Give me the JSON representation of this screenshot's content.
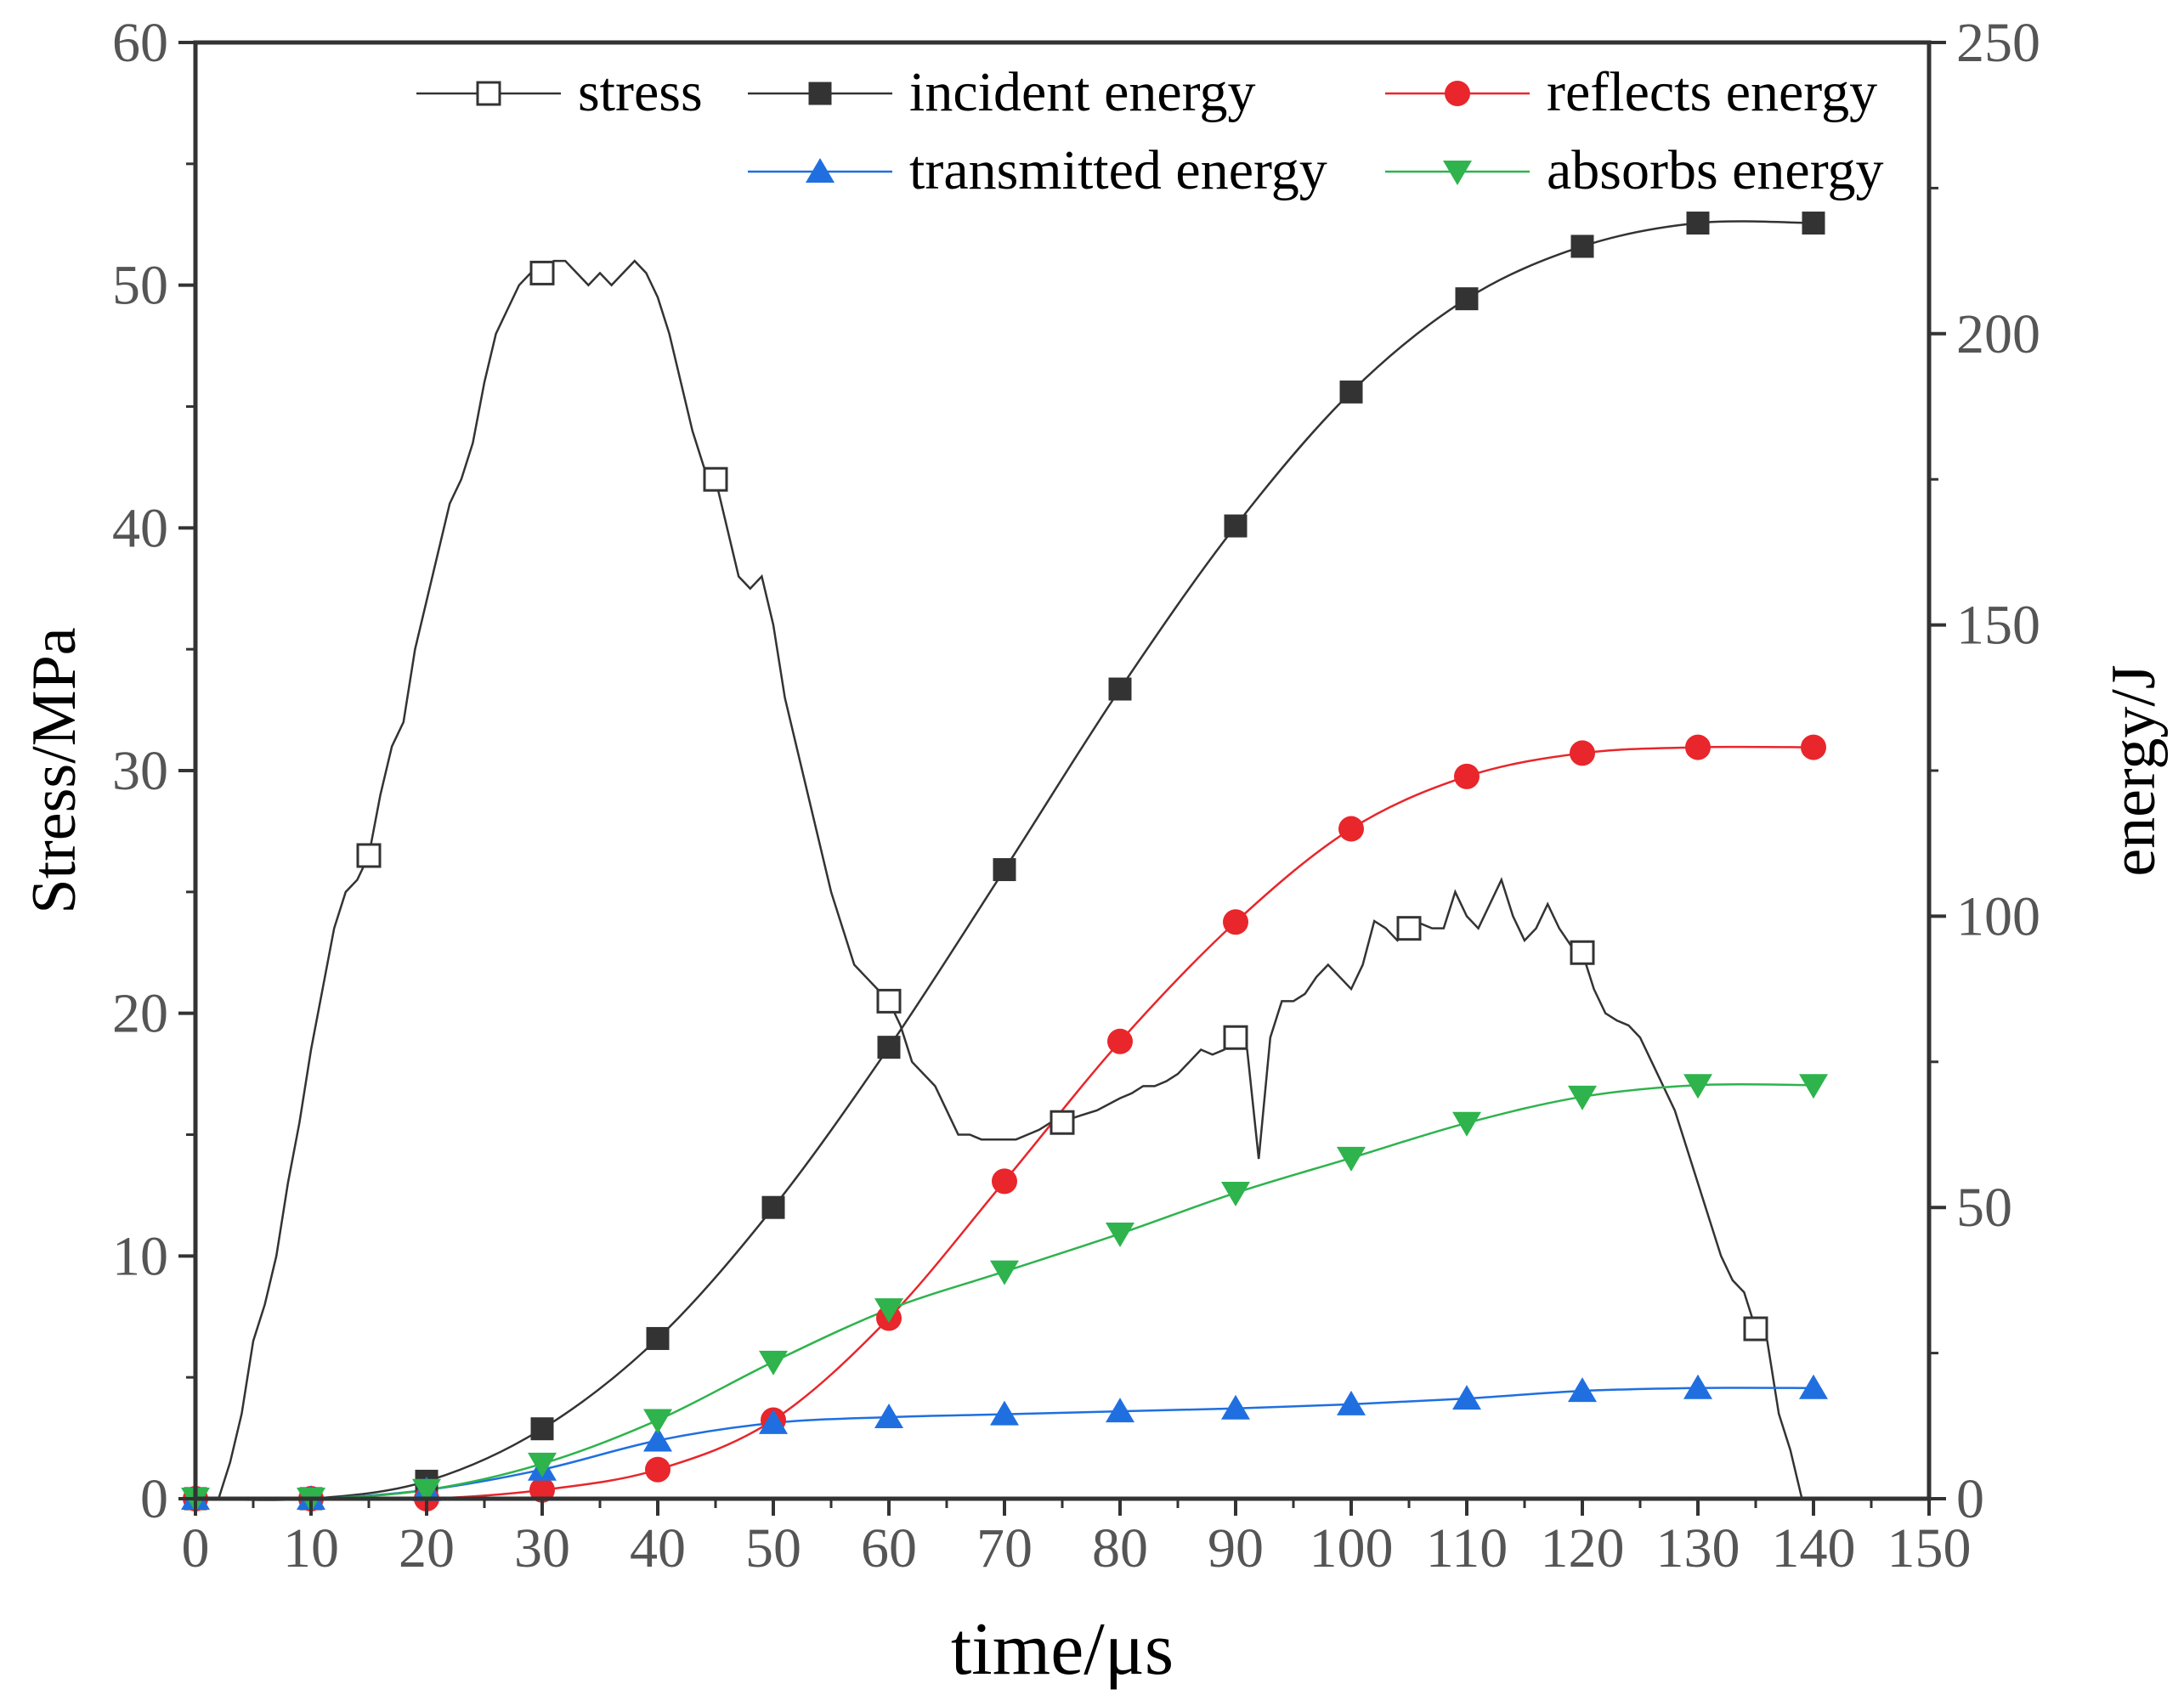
{
  "chart_data": {
    "type": "line",
    "xlabel": "time/μs",
    "ylabel": "Stress/MPa",
    "y2label": "energy/J",
    "xlim": [
      0,
      150
    ],
    "ylim": [
      0,
      60
    ],
    "y2lim": [
      0,
      250
    ],
    "xticks": [
      0,
      10,
      20,
      30,
      40,
      50,
      60,
      70,
      80,
      90,
      100,
      110,
      120,
      130,
      140,
      150
    ],
    "yticks": [
      0,
      10,
      20,
      30,
      40,
      50,
      60
    ],
    "y2ticks": [
      0,
      50,
      100,
      150,
      200,
      250
    ],
    "grid": false,
    "legend_position": "top",
    "series": [
      {
        "name": "stress",
        "axis": "left",
        "color": "#333333",
        "marker": "open-square",
        "x": [
          0,
          1,
          2,
          3,
          4,
          5,
          6,
          7,
          8,
          9,
          10,
          11,
          12,
          13,
          14,
          15,
          16,
          17,
          18,
          19,
          20,
          21,
          22,
          23,
          24,
          25,
          26,
          27,
          28,
          29,
          30,
          31,
          32,
          33,
          34,
          35,
          36,
          37,
          38,
          39,
          40,
          41,
          42,
          43,
          44,
          45,
          46,
          47,
          48,
          49,
          50,
          51,
          52,
          53,
          54,
          55,
          56,
          57,
          58,
          59,
          60,
          61,
          62,
          63,
          64,
          65,
          66,
          67,
          68,
          69,
          70,
          71,
          72,
          73,
          74,
          75,
          76,
          78,
          80,
          81,
          82,
          83,
          84,
          85,
          86,
          87,
          88,
          89,
          90,
          91,
          92,
          93,
          94,
          95,
          96,
          97,
          98,
          99,
          100,
          101,
          102,
          103,
          104,
          105,
          106,
          107,
          108,
          109,
          110,
          111,
          112,
          113,
          114,
          115,
          116,
          117,
          118,
          119,
          120,
          121,
          122,
          123,
          124,
          125,
          126,
          127,
          128,
          129,
          130,
          131,
          132,
          133,
          134,
          135,
          136,
          137,
          138,
          139
        ],
        "y": [
          0,
          0,
          0,
          1.5,
          3.5,
          6.5,
          8,
          10,
          13,
          15.5,
          18.5,
          21,
          23.5,
          25,
          25.5,
          26.5,
          29,
          31,
          32,
          35,
          37,
          39,
          41,
          42,
          43.5,
          46,
          48,
          49,
          50,
          50.5,
          50.5,
          51,
          51,
          50.5,
          50,
          50.5,
          50,
          50.5,
          51,
          50.5,
          49.5,
          48,
          46,
          44,
          42.5,
          42,
          40,
          38,
          37.5,
          38,
          36,
          33,
          31,
          29,
          27,
          25,
          23.5,
          22,
          21.5,
          21,
          20.5,
          19.5,
          18,
          17.5,
          17,
          16,
          15,
          15,
          14.8,
          14.8,
          14.8,
          14.8,
          15,
          15.2,
          15.5,
          15.5,
          15.7,
          16,
          16.5,
          16.7,
          17,
          17,
          17.2,
          17.5,
          18,
          18.5,
          18.3,
          18.5,
          19,
          18.5,
          14,
          19,
          20.5,
          20.5,
          20.8,
          21.5,
          22,
          21.5,
          21,
          22,
          23.8,
          23.5,
          23,
          23.5,
          23.7,
          23.5,
          23.5,
          25,
          24,
          23.5,
          24.5,
          25.5,
          24,
          23,
          23.5,
          24.5,
          23.5,
          22.8,
          22.5,
          21,
          20,
          19.7,
          19.5,
          19,
          18,
          17,
          16,
          14.5,
          13,
          11.5,
          10,
          9,
          8.5,
          7,
          6.5,
          3.5,
          2,
          0
        ]
      },
      {
        "name": "incident energy",
        "axis": "right",
        "color": "#333333",
        "marker": "filled-square",
        "x": [
          0,
          10,
          20,
          30,
          40,
          50,
          60,
          70,
          80,
          90,
          100,
          110,
          120,
          130,
          140
        ],
        "y": [
          0,
          0,
          3,
          12,
          27.5,
          50,
          77.5,
          108,
          139,
          167,
          190,
          206,
          215,
          219,
          219
        ]
      },
      {
        "name": "reflects energy",
        "axis": "right",
        "color": "#e8262b",
        "marker": "filled-circle",
        "x": [
          0,
          10,
          20,
          30,
          40,
          50,
          60,
          70,
          80,
          90,
          100,
          110,
          120,
          130,
          140
        ],
        "y": [
          0,
          0,
          0,
          1.5,
          5,
          13.5,
          31,
          54.5,
          78.5,
          99,
          115,
          124,
          128,
          129,
          129
        ]
      },
      {
        "name": "transmitted energy",
        "axis": "right",
        "color": "#1f6fe0",
        "marker": "filled-triangle-up",
        "x": [
          0,
          10,
          20,
          30,
          40,
          50,
          60,
          70,
          80,
          90,
          100,
          110,
          120,
          130,
          140
        ],
        "y": [
          0,
          0,
          1.5,
          5,
          10,
          13,
          14,
          14.5,
          15,
          15.5,
          16.2,
          17.2,
          18.5,
          19,
          19
        ]
      },
      {
        "name": "absorbs energy",
        "axis": "right",
        "color": "#2eb34d",
        "marker": "filled-triangle-down",
        "x": [
          0,
          10,
          20,
          30,
          40,
          50,
          60,
          70,
          80,
          90,
          100,
          110,
          120,
          130,
          140
        ],
        "y": [
          0,
          0,
          1.5,
          6,
          13.5,
          23.5,
          32.5,
          39,
          45.5,
          52.5,
          58.5,
          64.5,
          69,
          71,
          71
        ]
      }
    ],
    "marker_x": {
      "stress": [
        15,
        30,
        45,
        60,
        75,
        90,
        105,
        120,
        135
      ]
    }
  }
}
